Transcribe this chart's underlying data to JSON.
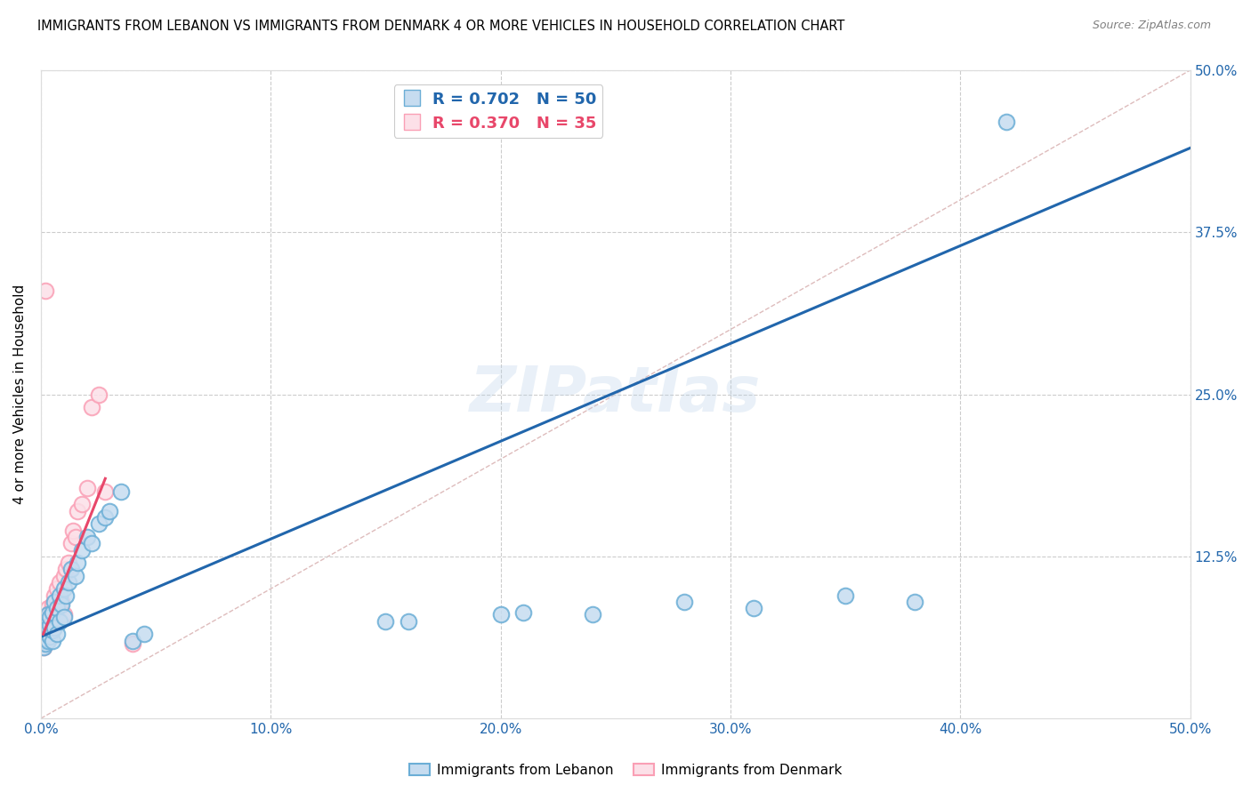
{
  "title": "IMMIGRANTS FROM LEBANON VS IMMIGRANTS FROM DENMARK 4 OR MORE VEHICLES IN HOUSEHOLD CORRELATION CHART",
  "source": "Source: ZipAtlas.com",
  "ylabel": "4 or more Vehicles in Household",
  "xlim": [
    0.0,
    0.5
  ],
  "ylim": [
    0.0,
    0.5
  ],
  "xtick_vals": [
    0.0,
    0.1,
    0.2,
    0.3,
    0.4,
    0.5
  ],
  "ytick_vals": [
    0.125,
    0.25,
    0.375,
    0.5
  ],
  "watermark": "ZIPatlas",
  "blue_R": 0.702,
  "blue_N": 50,
  "pink_R": 0.37,
  "pink_N": 35,
  "blue_face_color": "#c6dcf0",
  "blue_edge_color": "#6baed6",
  "blue_line_color": "#2166ac",
  "pink_face_color": "#fce0e8",
  "pink_edge_color": "#fa9fb5",
  "pink_line_color": "#e8476a",
  "diagonal_color": "#d0a0a0",
  "legend_labels": [
    "Immigrants from Lebanon",
    "Immigrants from Denmark"
  ],
  "background_color": "#ffffff",
  "blue_x": [
    0.001,
    0.001,
    0.001,
    0.002,
    0.002,
    0.002,
    0.002,
    0.003,
    0.003,
    0.003,
    0.003,
    0.004,
    0.004,
    0.004,
    0.005,
    0.005,
    0.005,
    0.006,
    0.006,
    0.007,
    0.007,
    0.008,
    0.008,
    0.009,
    0.01,
    0.01,
    0.011,
    0.012,
    0.013,
    0.015,
    0.016,
    0.018,
    0.02,
    0.022,
    0.025,
    0.028,
    0.03,
    0.035,
    0.04,
    0.045,
    0.15,
    0.16,
    0.2,
    0.21,
    0.24,
    0.28,
    0.31,
    0.35,
    0.38,
    0.42
  ],
  "blue_y": [
    0.055,
    0.06,
    0.065,
    0.058,
    0.062,
    0.068,
    0.075,
    0.06,
    0.065,
    0.07,
    0.08,
    0.063,
    0.072,
    0.078,
    0.06,
    0.068,
    0.082,
    0.07,
    0.09,
    0.065,
    0.085,
    0.075,
    0.095,
    0.088,
    0.078,
    0.1,
    0.095,
    0.105,
    0.115,
    0.11,
    0.12,
    0.13,
    0.14,
    0.135,
    0.15,
    0.155,
    0.16,
    0.175,
    0.06,
    0.065,
    0.075,
    0.075,
    0.08,
    0.082,
    0.08,
    0.09,
    0.085,
    0.095,
    0.09,
    0.46
  ],
  "pink_x": [
    0.001,
    0.001,
    0.001,
    0.002,
    0.002,
    0.002,
    0.003,
    0.003,
    0.003,
    0.004,
    0.004,
    0.005,
    0.005,
    0.006,
    0.006,
    0.007,
    0.007,
    0.008,
    0.008,
    0.009,
    0.01,
    0.01,
    0.011,
    0.012,
    0.013,
    0.014,
    0.015,
    0.016,
    0.018,
    0.02,
    0.022,
    0.025,
    0.028,
    0.04,
    0.002
  ],
  "pink_y": [
    0.055,
    0.062,
    0.07,
    0.06,
    0.068,
    0.078,
    0.065,
    0.075,
    0.085,
    0.07,
    0.082,
    0.072,
    0.088,
    0.078,
    0.095,
    0.082,
    0.1,
    0.085,
    0.105,
    0.09,
    0.08,
    0.11,
    0.115,
    0.12,
    0.135,
    0.145,
    0.14,
    0.16,
    0.165,
    0.178,
    0.24,
    0.25,
    0.175,
    0.058,
    0.33
  ],
  "blue_line_x": [
    0.0,
    0.5
  ],
  "blue_line_y": [
    0.063,
    0.44
  ],
  "pink_line_x_start": 0.001,
  "pink_line_x_end": 0.028,
  "pink_line_y_start": 0.065,
  "pink_line_y_end": 0.185
}
